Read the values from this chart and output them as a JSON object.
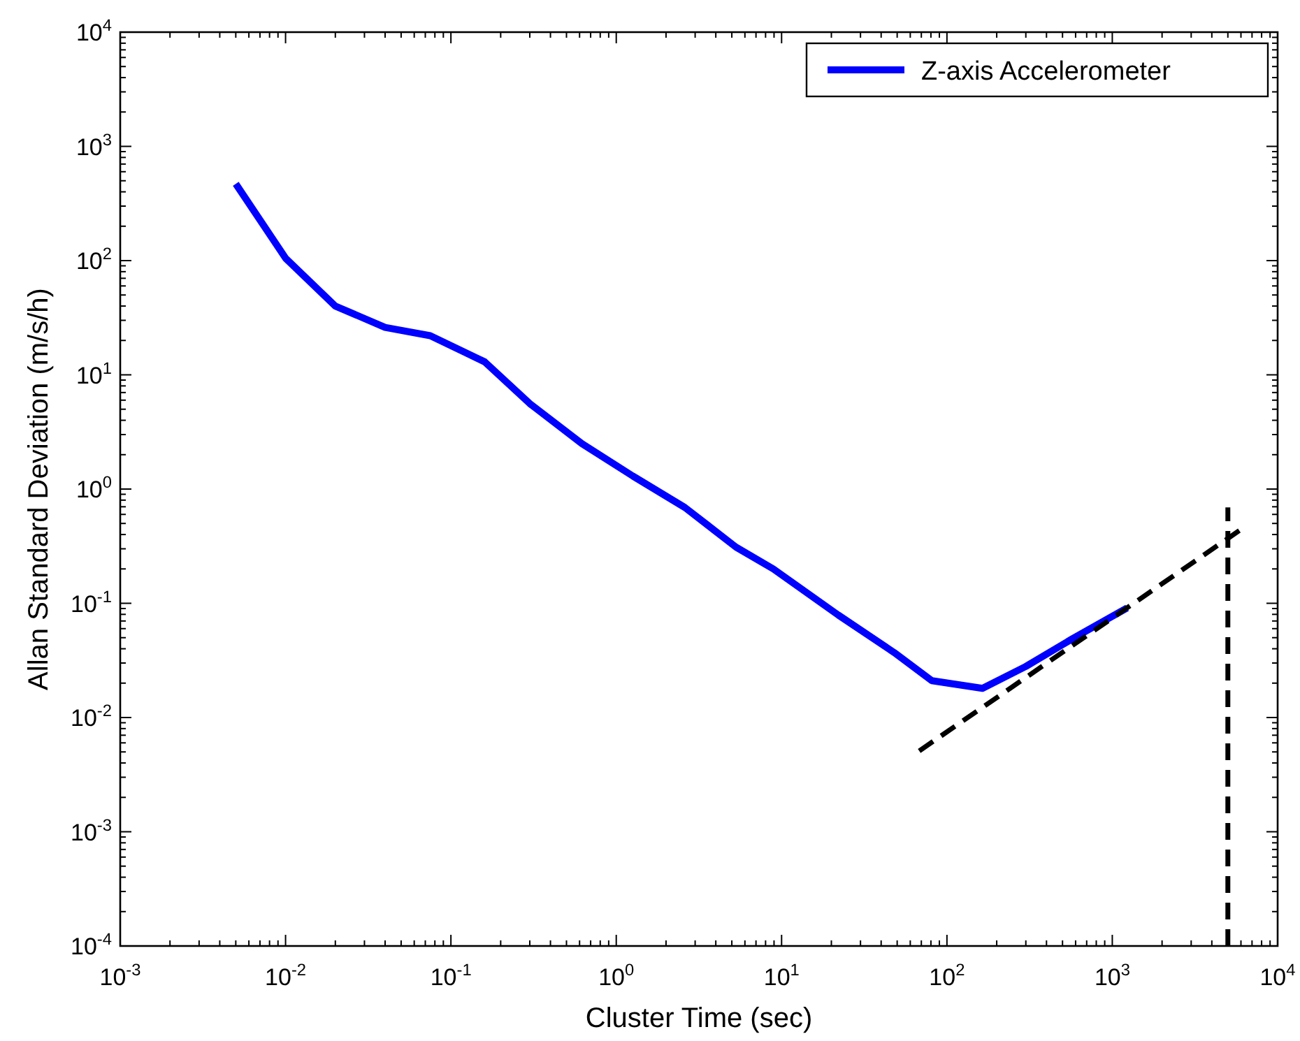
{
  "chart_data": {
    "type": "line",
    "xlabel": "Cluster Time (sec)",
    "ylabel": "Allan Standard Deviation (m/s/h)",
    "log": "xy",
    "grid": false,
    "legend": "top right",
    "line_style": "solid",
    "xlim": [
      0.001,
      10000
    ],
    "ylim": [
      0.0001,
      10000
    ],
    "xticks": [
      {
        "value": 0.001,
        "label": "10$^{-3}$"
      },
      {
        "value": 0.01,
        "label": "10$^{-2}$"
      },
      {
        "value": 0.1,
        "label": "10$^{-1}$"
      },
      {
        "value": 1,
        "label": "10$^{0}$"
      },
      {
        "value": 10,
        "label": "10$^{1}$"
      },
      {
        "value": 100,
        "label": "10$^{2}$"
      },
      {
        "value": 1000,
        "label": "10$^{3}$"
      },
      {
        "value": 10000,
        "label": "10$^{4}$"
      }
    ],
    "yticks": [
      {
        "value": 0.0001,
        "label": "10$^{-4}$"
      },
      {
        "value": 0.001,
        "label": "10$^{-3}$"
      },
      {
        "value": 0.01,
        "label": "10$^{-2}$"
      },
      {
        "value": 0.1,
        "label": "10$^{-1}$"
      },
      {
        "value": 1,
        "label": "10$^{0}$"
      },
      {
        "value": 10,
        "label": "10$^{1}$"
      },
      {
        "value": 100,
        "label": "10$^{2}$"
      },
      {
        "value": 1000,
        "label": "10$^{3}$"
      },
      {
        "value": 10000,
        "label": "10$^{4}$"
      }
    ],
    "series": [
      {
        "name": "Z-axis Accelerometer",
        "color": "#0000ff",
        "x": [
          0.005,
          0.01,
          0.02,
          0.04,
          0.075,
          0.16,
          0.3,
          0.62,
          1.26,
          2.6,
          5.3,
          8.9,
          22,
          48,
          81,
          164,
          300,
          575,
          1230
        ],
        "values": [
          470,
          105,
          40,
          26,
          22,
          13,
          5.6,
          2.5,
          1.3,
          0.69,
          0.31,
          0.2,
          0.079,
          0.037,
          0.021,
          0.018,
          0.028,
          0.049,
          0.091
        ]
      },
      {
        "color": "#000000",
        "line_style": "dashed",
        "x": [
          68,
          6500
        ],
        "values": [
          0.0051,
          0.48
        ]
      },
      {
        "color": "#000000",
        "line_style": "dashed",
        "x": [
          5000,
          5000
        ],
        "values": [
          0.0001,
          0.69
        ]
      }
    ]
  }
}
